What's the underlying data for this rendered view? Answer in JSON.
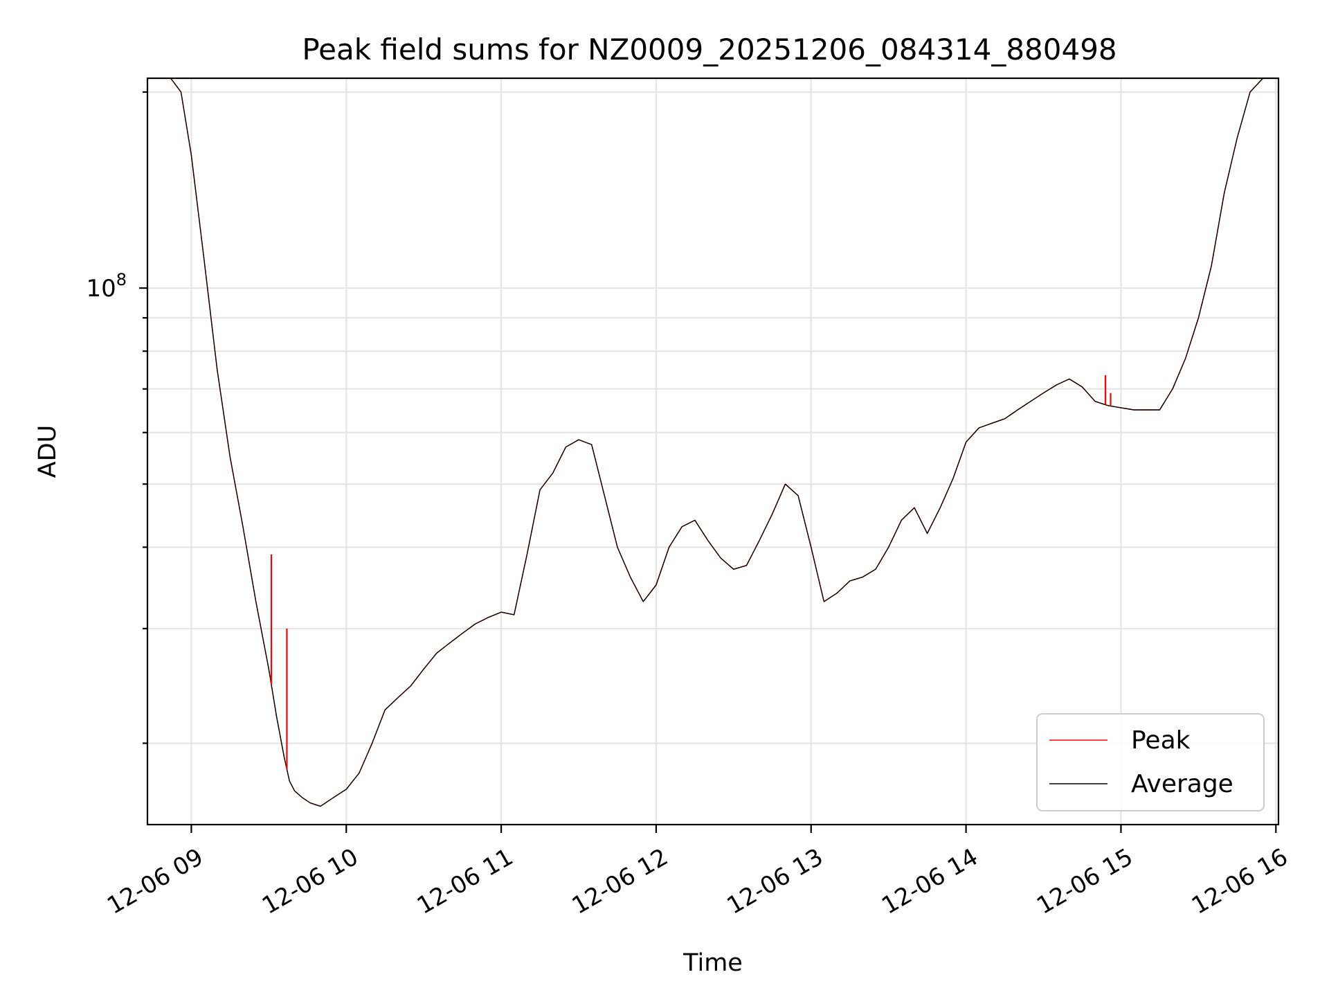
{
  "chart_data": {
    "type": "line",
    "title": "Peak field sums for NZ0009_20251206_084314_880498",
    "xlabel": "Time",
    "ylabel": "ADU",
    "yscale": "log",
    "grid": true,
    "grid_minor": true,
    "legend_position": "lower-right",
    "xlim": [
      "2025-12-06 08:43",
      "2025-12-06 16:01"
    ],
    "ylim": [
      15000000,
      210000000
    ],
    "x_ticks": [
      "12-06 09",
      "12-06 10",
      "12-06 11",
      "12-06 12",
      "12-06 13",
      "12-06 14",
      "12-06 15",
      "12-06 16"
    ],
    "y_ticks": [
      {
        "value": 100000000,
        "label": "10^8",
        "base": "10",
        "exponent": "8"
      }
    ],
    "y_minor_ticks": [
      20000000,
      30000000,
      40000000,
      50000000,
      60000000,
      70000000,
      80000000,
      90000000,
      200000000
    ],
    "x": [
      "08:43",
      "08:52",
      "08:56",
      "09:00",
      "09:05",
      "09:10",
      "09:15",
      "09:20",
      "09:25",
      "09:30",
      "09:33",
      "09:36",
      "09:38",
      "09:40",
      "09:43",
      "09:46",
      "09:50",
      "09:55",
      "10:00",
      "10:05",
      "10:10",
      "10:15",
      "10:20",
      "10:25",
      "10:30",
      "10:35",
      "10:40",
      "10:45",
      "10:50",
      "10:55",
      "11:00",
      "11:05",
      "11:10",
      "11:15",
      "11:20",
      "11:25",
      "11:30",
      "11:35",
      "11:40",
      "11:45",
      "11:50",
      "11:55",
      "12:00",
      "12:05",
      "12:10",
      "12:15",
      "12:20",
      "12:25",
      "12:30",
      "12:35",
      "12:40",
      "12:45",
      "12:50",
      "12:55",
      "13:00",
      "13:05",
      "13:10",
      "13:15",
      "13:20",
      "13:25",
      "13:30",
      "13:35",
      "13:40",
      "13:45",
      "13:50",
      "13:55",
      "14:00",
      "14:05",
      "14:10",
      "14:15",
      "14:20",
      "14:25",
      "14:30",
      "14:35",
      "14:40",
      "14:45",
      "14:50",
      "14:55",
      "15:00",
      "15:05",
      "15:10",
      "15:15",
      "15:20",
      "15:25",
      "15:30",
      "15:35",
      "15:40",
      "15:45",
      "15:50",
      "15:55",
      "16:00",
      "16:01"
    ],
    "series": [
      {
        "name": "Peak",
        "color": "#ff0000",
        "values": [
          210000000,
          210000000,
          200000000,
          160000000,
          110000000,
          75000000,
          55000000,
          43000000,
          33000000,
          26000000,
          22000000,
          19000000,
          17500000,
          16900000,
          16500000,
          16200000,
          16000000,
          16500000,
          17000000,
          18000000,
          20000000,
          22500000,
          23500000,
          24500000,
          26000000,
          27500000,
          28500000,
          29500000,
          30500000,
          31200000,
          31800000,
          31500000,
          39000000,
          49000000,
          52000000,
          57000000,
          58500000,
          57500000,
          48000000,
          40000000,
          36000000,
          33000000,
          35000000,
          40000000,
          43000000,
          44000000,
          41000000,
          38500000,
          37000000,
          37500000,
          41000000,
          45000000,
          50000000,
          48000000,
          40000000,
          33000000,
          34000000,
          35500000,
          36000000,
          37000000,
          40000000,
          44000000,
          46000000,
          42000000,
          46000000,
          51000000,
          58000000,
          61000000,
          62000000,
          63000000,
          65000000,
          67000000,
          69000000,
          71000000,
          72500000,
          70500000,
          67000000,
          66000000,
          65500000,
          65000000,
          65000000,
          65000000,
          70000000,
          78000000,
          90000000,
          108000000,
          140000000,
          170000000,
          200000000,
          210000000,
          210000000,
          210000000
        ]
      },
      {
        "name": "Average",
        "color": "#000000",
        "values": [
          210000000,
          210000000,
          200000000,
          160000000,
          110000000,
          75000000,
          55000000,
          43000000,
          33000000,
          26000000,
          22000000,
          19000000,
          17500000,
          16900000,
          16500000,
          16200000,
          16000000,
          16500000,
          17000000,
          18000000,
          20000000,
          22500000,
          23500000,
          24500000,
          26000000,
          27500000,
          28500000,
          29500000,
          30500000,
          31200000,
          31800000,
          31500000,
          39000000,
          49000000,
          52000000,
          57000000,
          58500000,
          57500000,
          48000000,
          40000000,
          36000000,
          33000000,
          35000000,
          40000000,
          43000000,
          44000000,
          41000000,
          38500000,
          37000000,
          37500000,
          41000000,
          45000000,
          50000000,
          48000000,
          40000000,
          33000000,
          34000000,
          35500000,
          36000000,
          37000000,
          40000000,
          44000000,
          46000000,
          42000000,
          46000000,
          51000000,
          58000000,
          61000000,
          62000000,
          63000000,
          65000000,
          67000000,
          69000000,
          71000000,
          72500000,
          70500000,
          67000000,
          66000000,
          65500000,
          65000000,
          65000000,
          65000000,
          70000000,
          78000000,
          90000000,
          108000000,
          140000000,
          170000000,
          200000000,
          210000000,
          210000000,
          210000000
        ]
      }
    ],
    "peak_spikes": [
      {
        "time": "09:31",
        "value": 39000000
      },
      {
        "time": "09:37",
        "value": 30000000
      },
      {
        "time": "14:54",
        "value": 73500000
      },
      {
        "time": "14:56",
        "value": 69000000
      }
    ]
  }
}
